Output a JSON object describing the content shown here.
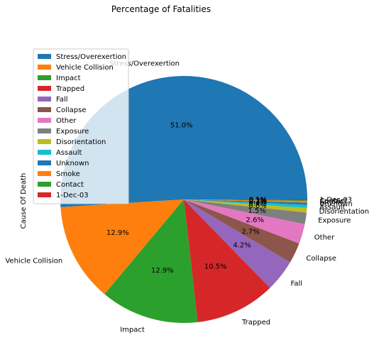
{
  "chart_data": {
    "type": "pie",
    "title": "Percentage of Fatalities",
    "ylabel": "Cause Of Death",
    "legend_placement": "upper-left",
    "start_angle_deg": 0,
    "direction": "counterclockwise",
    "slices": [
      {
        "label": "Stress/Overexertion",
        "percent": 51.0,
        "pct_label": "51.0%",
        "color": "#1f77b4"
      },
      {
        "label": "Vehicle Collision",
        "percent": 12.9,
        "pct_label": "12.9%",
        "color": "#ff7f0e"
      },
      {
        "label": "Impact",
        "percent": 12.9,
        "pct_label": "12.9%",
        "color": "#2ca02c"
      },
      {
        "label": "Trapped",
        "percent": 10.5,
        "pct_label": "10.5%",
        "color": "#d62728"
      },
      {
        "label": "Fall",
        "percent": 4.2,
        "pct_label": "4.2%",
        "color": "#9467bd"
      },
      {
        "label": "Collapse",
        "percent": 2.7,
        "pct_label": "2.7%",
        "color": "#8c564b"
      },
      {
        "label": "Other",
        "percent": 2.6,
        "pct_label": "2.6%",
        "color": "#e377c2"
      },
      {
        "label": "Exposure",
        "percent": 1.5,
        "pct_label": "1.5%",
        "color": "#7f7f7f"
      },
      {
        "label": "Disorientation",
        "percent": 0.6,
        "pct_label": "0.6%",
        "color": "#bcbd22"
      },
      {
        "label": "Assault",
        "percent": 0.4,
        "pct_label": "0.4%",
        "color": "#17becf"
      },
      {
        "label": "Unknown",
        "percent": 0.3,
        "pct_label": "0.3%",
        "color": "#1f77b4"
      },
      {
        "label": "Smoke",
        "percent": 0.2,
        "pct_label": "0.2%",
        "color": "#ff7f0e"
      },
      {
        "label": "Contact",
        "percent": 0.1,
        "pct_label": "0.1%",
        "color": "#2ca02c"
      },
      {
        "label": "1-Dec-03",
        "percent": 0.1,
        "pct_label": "0.1%",
        "color": "#d62728"
      }
    ]
  }
}
